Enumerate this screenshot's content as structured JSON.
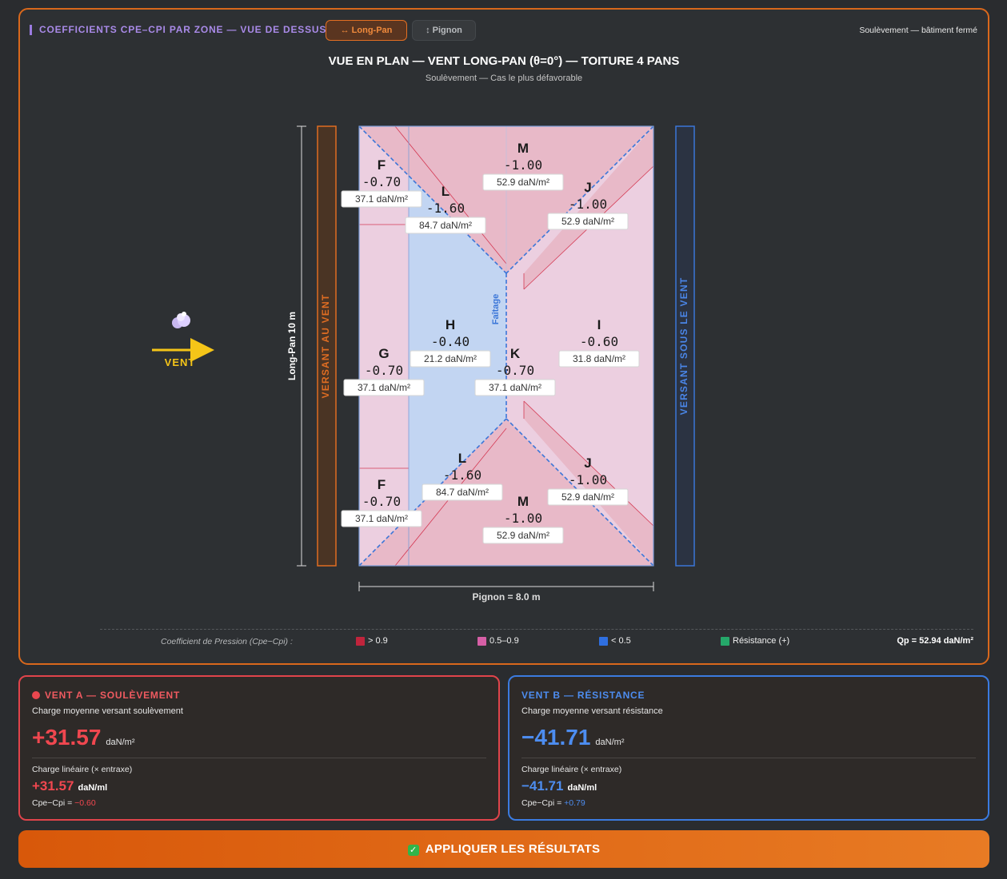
{
  "header": {
    "title": "COEFFICIENTS CPE–CPI PAR ZONE — VUE DE DESSUS",
    "tab_longpan": "↔ Long-Pan",
    "tab_pignon": "↕ Pignon",
    "right_label": "Soulèvement — bâtiment fermé"
  },
  "plan": {
    "title": "VUE EN PLAN — VENT LONG-PAN (θ=0°) — TOITURE 4 PANS",
    "subtitle": "Soulèvement — Cas le plus défavorable",
    "wind_label": "VENT",
    "windward_label": "VERSANT AU VENT",
    "leeward_label": "VERSANT SOUS LE VENT",
    "length_label": "Long-Pan 10 m",
    "width_label": "Pignon = 8.0 m",
    "ridge_label": "Faîtage",
    "zones": [
      {
        "id": "F",
        "cpe": "-0.70",
        "pressure": "37.1 daN/m²"
      },
      {
        "id": "M",
        "cpe": "-1.00",
        "pressure": "52.9 daN/m²"
      },
      {
        "id": "L",
        "cpe": "-1.60",
        "pressure": "84.7 daN/m²"
      },
      {
        "id": "J",
        "cpe": "-1.00",
        "pressure": "52.9 daN/m²"
      },
      {
        "id": "H",
        "cpe": "-0.40",
        "pressure": "21.2 daN/m²"
      },
      {
        "id": "I",
        "cpe": "-0.60",
        "pressure": "31.8 daN/m²"
      },
      {
        "id": "G",
        "cpe": "-0.70",
        "pressure": "37.1 daN/m²"
      },
      {
        "id": "K",
        "cpe": "-0.70",
        "pressure": "37.1 daN/m²"
      },
      {
        "id": "L",
        "cpe": "-1.60",
        "pressure": "84.7 daN/m²"
      },
      {
        "id": "J",
        "cpe": "-1.00",
        "pressure": "52.9 daN/m²"
      },
      {
        "id": "F",
        "cpe": "-0.70",
        "pressure": "37.1 daN/m²"
      },
      {
        "id": "M",
        "cpe": "-1.00",
        "pressure": "52.9 daN/m²"
      }
    ]
  },
  "legend": {
    "label": "Coefficient de Pression (Cpe−Cpi) :",
    "items": [
      {
        "label": "> 0.9",
        "color": "#c0243c"
      },
      {
        "label": "0.5–0.9",
        "color": "#d65fa6"
      },
      {
        "label": "< 0.5",
        "color": "#2f6fe0"
      },
      {
        "label": "Résistance (+)",
        "color": "#25a86a"
      }
    ],
    "qp": "Qp = 52.94 daN/m²"
  },
  "colors": {
    "accent": "#d9681c",
    "uplift": "#f0474f",
    "resistance": "#4d8df0"
  },
  "card_a": {
    "title": "VENT A — SOULÈVEMENT",
    "subtitle": "Charge moyenne versant soulèvement",
    "value": "+31.57",
    "unit": "daN/m²",
    "lin_label": "Charge linéaire (× entraxe)",
    "lin_value": "+31.57",
    "lin_unit": "daN/ml",
    "cpe_label": "Cpe−Cpi = ",
    "cpe_value": "−0.60"
  },
  "card_b": {
    "title": "VENT B — RÉSISTANCE",
    "subtitle": "Charge moyenne versant résistance",
    "value": "−41.71",
    "unit": "daN/m²",
    "lin_label": "Charge linéaire (× entraxe)",
    "lin_value": "−41.71",
    "lin_unit": "daN/ml",
    "cpe_label": "Cpe−Cpi = ",
    "cpe_value": "+0.79"
  },
  "apply_button": "APPLIQUER LES RÉSULTATS"
}
